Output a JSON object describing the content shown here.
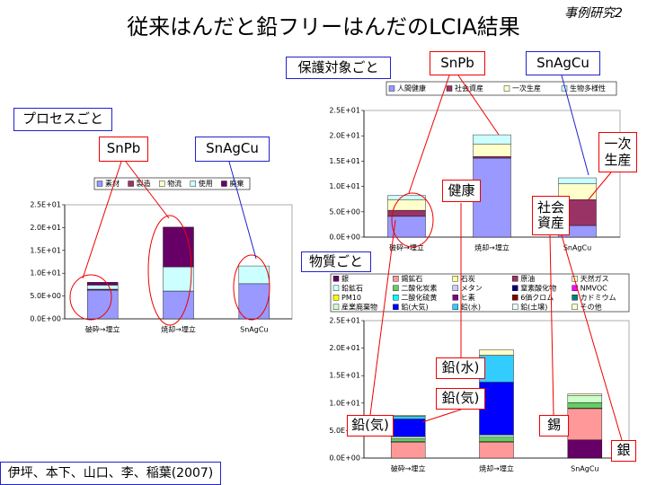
{
  "title": "従来はんだと鉛フリーはんだのLCIA結果",
  "case_label": "事例研究2",
  "citation": "伊坪、本下、山口、李、稲葉(2007)",
  "sections": {
    "process": "プロセスごと",
    "protection": "保護対象ごと",
    "substance": "物質ごと"
  },
  "callouts": {
    "process_snpb": "SnPb",
    "process_snagcu": "SnAgCu",
    "protection_snpb": "SnPb",
    "protection_snagcu": "SnAgCu",
    "primary": "一次\n生産",
    "health": "健康",
    "social": "社会\n資産",
    "lead_water": "鉛(水)",
    "lead_air_1": "鉛(気)",
    "lead_air_2": "鉛(気)",
    "tin": "錫",
    "silver": "銀"
  },
  "chart_data": [
    {
      "type": "bar",
      "stacked": true,
      "categories": [
        "破砕→埋立",
        "焼却→埋立",
        "SnAgCu"
      ],
      "ylim": [
        0,
        25
      ],
      "yticks": [
        {
          "value": 0,
          "label": "0.0E+00"
        },
        {
          "value": 5,
          "label": "5.0E+00"
        },
        {
          "value": 10,
          "label": "1.0E+01"
        },
        {
          "value": 15,
          "label": "1.5E+01"
        },
        {
          "value": 20,
          "label": "2.0E+01"
        },
        {
          "value": 25,
          "label": "2.5E+01"
        }
      ],
      "grid": false,
      "legend": "top",
      "series": [
        {
          "name": "素材",
          "color": "#9999ff",
          "values": [
            6.3,
            6.1,
            7.7
          ]
        },
        {
          "name": "製造",
          "color": "#993366",
          "values": [
            0.2,
            0,
            0
          ]
        },
        {
          "name": "物流",
          "color": "#ffffcc",
          "values": [
            0,
            0,
            0
          ]
        },
        {
          "name": "使用",
          "color": "#ccffff",
          "values": [
            0.9,
            5.3,
            3.9
          ]
        },
        {
          "name": "廃棄",
          "color": "#660066",
          "values": [
            0.6,
            8.7,
            0
          ]
        }
      ]
    },
    {
      "type": "bar",
      "stacked": true,
      "categories": [
        "破砕→埋立",
        "焼却→埋立",
        "SnAgCu"
      ],
      "ylim": [
        0,
        25
      ],
      "yticks": [
        {
          "value": 0,
          "label": "0.0E+00"
        },
        {
          "value": 5,
          "label": "5.0E+00"
        },
        {
          "value": 10,
          "label": "1.0E+01"
        },
        {
          "value": 15,
          "label": "1.5E+01"
        },
        {
          "value": 20,
          "label": "2.0E+01"
        },
        {
          "value": 25,
          "label": "2.5E+01"
        }
      ],
      "grid": false,
      "legend": "top",
      "series": [
        {
          "name": "人間健康",
          "color": "#9999ff",
          "values": [
            4.1,
            15.6,
            2.3
          ]
        },
        {
          "name": "社会資産",
          "color": "#993366",
          "values": [
            1.2,
            0.3,
            5.1
          ]
        },
        {
          "name": "一次生産",
          "color": "#ffffcc",
          "values": [
            2.1,
            2.5,
            3.1
          ]
        },
        {
          "name": "生物多様性",
          "color": "#ccffff",
          "values": [
            0.8,
            1.8,
            1.2
          ]
        }
      ]
    },
    {
      "type": "bar",
      "stacked": true,
      "categories": [
        "破砕→埋立",
        "焼却→埋立",
        "SnAgCu"
      ],
      "ylim": [
        0,
        25
      ],
      "yticks": [
        {
          "value": 0,
          "label": "0.0E+00"
        },
        {
          "value": 5,
          "label": "5.0E+00"
        },
        {
          "value": 10,
          "label": "1.0E+01"
        },
        {
          "value": 15,
          "label": "1.5E+01"
        },
        {
          "value": 20,
          "label": "2.0E+01"
        },
        {
          "value": 25,
          "label": "2.5E+01"
        }
      ],
      "grid": false,
      "legend": "top",
      "series": [
        {
          "name": "銀",
          "color": "#660066",
          "values": [
            0,
            0,
            3.3
          ]
        },
        {
          "name": "錫鉱石",
          "color": "#ff9999",
          "values": [
            2.9,
            2.9,
            5.7
          ]
        },
        {
          "name": "石炭",
          "color": "#ffff99",
          "values": [
            0.1,
            0.1,
            0.1
          ]
        },
        {
          "name": "原油",
          "color": "#993366",
          "values": [
            0,
            0,
            0
          ]
        },
        {
          "name": "天然ガス",
          "color": "#ffffcc",
          "values": [
            0,
            0,
            0
          ]
        },
        {
          "name": "鉛鉱石",
          "color": "#ccffff",
          "values": [
            0,
            0,
            0
          ]
        },
        {
          "name": "二酸化炭素",
          "color": "#66cc66",
          "values": [
            0.5,
            0.8,
            1.0
          ]
        },
        {
          "name": "メタン",
          "color": "#ccccff",
          "values": [
            0,
            0,
            0
          ]
        },
        {
          "name": "窒素酸化物",
          "color": "#000080",
          "values": [
            0,
            0,
            0
          ]
        },
        {
          "name": "NMVOC",
          "color": "#ff00ff",
          "values": [
            0,
            0,
            0
          ]
        },
        {
          "name": "PM10",
          "color": "#ffff00",
          "values": [
            0,
            0,
            0
          ]
        },
        {
          "name": "二酸化硫黄",
          "color": "#00ffff",
          "values": [
            0,
            0,
            0
          ]
        },
        {
          "name": "ヒ素",
          "color": "#800080",
          "values": [
            0,
            0,
            0
          ]
        },
        {
          "name": "6価クロム",
          "color": "#800000",
          "values": [
            0,
            0,
            0
          ]
        },
        {
          "name": "カドミウム",
          "color": "#008080",
          "values": [
            0,
            0,
            0
          ]
        },
        {
          "name": "産業廃棄物",
          "color": "#ccffcc",
          "values": [
            0.4,
            0.4,
            1.3
          ]
        },
        {
          "name": "鉛(大気)",
          "color": "#0000ff",
          "values": [
            3.2,
            9.6,
            0
          ]
        },
        {
          "name": "鉛(水)",
          "color": "#33ccff",
          "values": [
            0.5,
            4.9,
            0
          ]
        },
        {
          "name": "鉛(土壌)",
          "color": "#e6ffff",
          "values": [
            0,
            0,
            0
          ]
        },
        {
          "name": "その他",
          "color": "#ffffcc",
          "values": [
            0.2,
            1.0,
            0.3
          ]
        }
      ]
    }
  ]
}
